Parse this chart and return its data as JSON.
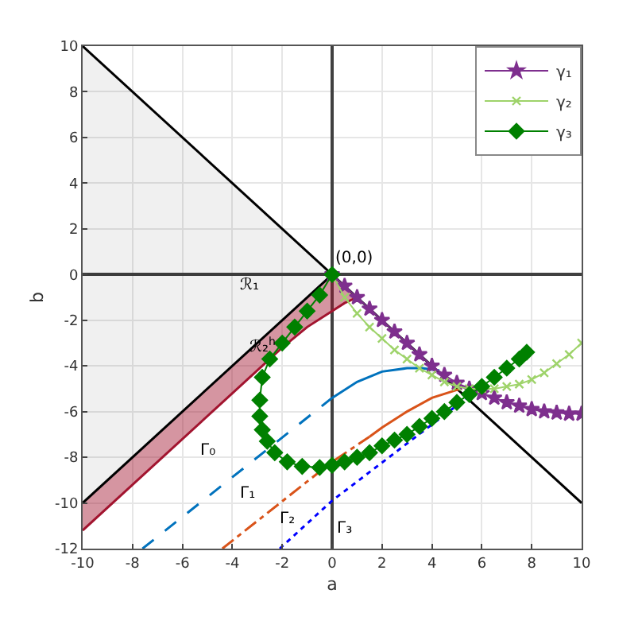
{
  "chart_data": {
    "type": "line",
    "xlabel": "a",
    "ylabel": "b",
    "xlim": [
      -10,
      10
    ],
    "ylim": [
      -12,
      10
    ],
    "xticks": [
      -10,
      -8,
      -6,
      -4,
      -2,
      0,
      2,
      4,
      6,
      8,
      10
    ],
    "yticks": [
      -12,
      -10,
      -8,
      -6,
      -4,
      -2,
      0,
      2,
      4,
      6,
      8,
      10
    ],
    "grid": true,
    "legend": "top right",
    "series": [
      {
        "type": "line",
        "color": "#000000",
        "line_style": "solid",
        "marker": "none",
        "x": [
          -10,
          10
        ],
        "values": [
          10,
          -10
        ]
      },
      {
        "type": "line",
        "color": "#000000",
        "line_style": "solid",
        "marker": "none",
        "x": [
          -10,
          0
        ],
        "values": [
          -10,
          0
        ],
        "lower": [
          -10,
          0
        ],
        "upper": [
          10,
          0
        ]
      },
      {
        "type": "line",
        "color": "#a2142f",
        "line_style": "solid",
        "marker": "none",
        "x": [
          -10,
          -2,
          -1,
          0,
          0.5,
          1
        ],
        "values": [
          -11.2,
          -3.2,
          -2.3,
          -1.6,
          -1.25,
          -1
        ],
        "lower": [
          -11.2,
          -3.2,
          -2.3,
          -1.6,
          -1.25,
          -1
        ],
        "upper": [
          -10,
          -2,
          -1,
          0,
          -0.5,
          -1
        ]
      },
      {
        "type": "line",
        "color": "#0072bd",
        "line_style": "dashed",
        "marker": "none",
        "x": [
          -7.6,
          0
        ],
        "values": [
          -12,
          -5.4
        ]
      },
      {
        "type": "line",
        "color": "#0072bd",
        "line_style": "solid",
        "marker": "none",
        "x": [
          0,
          1,
          2,
          3,
          3.6,
          4.3
        ],
        "values": [
          -5.4,
          -4.7,
          -4.25,
          -4.1,
          -4.1,
          -4.2
        ]
      },
      {
        "type": "line",
        "color": "#d95319",
        "line_style": "dashdot",
        "marker": "none",
        "x": [
          -4.4,
          0,
          1.5
        ],
        "values": [
          -12,
          -8.2,
          -7.1
        ]
      },
      {
        "type": "line",
        "color": "#d95319",
        "line_style": "solid",
        "marker": "none",
        "x": [
          1.5,
          2,
          3,
          4,
          5,
          5.2
        ],
        "values": [
          -7.1,
          -6.7,
          -6,
          -5.4,
          -5.05,
          -5
        ]
      },
      {
        "type": "line",
        "color": "#0000ff",
        "line_style": "dotted",
        "marker": "none",
        "x": [
          -2.1,
          0,
          5.4
        ],
        "values": [
          -12,
          -9.9,
          -5.4
        ]
      },
      {
        "name": "γ₁",
        "color": "#7e2f8e",
        "line_style": "solid",
        "marker": "star",
        "x": [
          0,
          0.5,
          1,
          1.5,
          2,
          2.5,
          3,
          3.5,
          4,
          4.5,
          5,
          5.5,
          6,
          6.5,
          7,
          7.5,
          8,
          8.5,
          9,
          9.5,
          10
        ],
        "values": [
          0,
          -0.5,
          -1,
          -1.5,
          -2,
          -2.5,
          -3,
          -3.5,
          -4,
          -4.4,
          -4.75,
          -5,
          -5.2,
          -5.4,
          -5.6,
          -5.75,
          -5.9,
          -6,
          -6.05,
          -6.1,
          -6.1
        ]
      },
      {
        "name": "γ₂",
        "color": "#9ed36a",
        "line_style": "solid",
        "marker": "cross",
        "x": [
          0,
          0.5,
          1,
          1.5,
          2,
          2.5,
          3,
          3.5,
          4,
          4.5,
          5,
          5.5,
          6,
          6.5,
          7,
          7.5,
          8,
          8.5,
          9,
          9.5,
          10
        ],
        "values": [
          0,
          -1,
          -1.7,
          -2.3,
          -2.8,
          -3.3,
          -3.7,
          -4.1,
          -4.4,
          -4.7,
          -4.9,
          -5,
          -5,
          -5,
          -4.9,
          -4.8,
          -4.6,
          -4.3,
          -3.9,
          -3.5,
          -3
        ]
      },
      {
        "name": "γ₃",
        "color": "#008000",
        "line_style": "solid",
        "marker": "diamond",
        "x": [
          0,
          -0.5,
          -1,
          -1.5,
          -2,
          -2.5,
          -2.8,
          -2.9,
          -2.9,
          -2.8,
          -2.6,
          -2.3,
          -1.8,
          -1.2,
          -0.5,
          0,
          0.5,
          1,
          1.5,
          2,
          2.5,
          3,
          3.5,
          4,
          4.5,
          5,
          5.5,
          6,
          6.5,
          7,
          7.5,
          7.8
        ],
        "values": [
          0,
          -0.9,
          -1.6,
          -2.3,
          -3,
          -3.7,
          -4.5,
          -5.5,
          -6.2,
          -6.8,
          -7.3,
          -7.8,
          -8.2,
          -8.4,
          -8.45,
          -8.35,
          -8.2,
          -8,
          -7.8,
          -7.5,
          -7.25,
          -7,
          -6.65,
          -6.3,
          -6,
          -5.6,
          -5.25,
          -4.9,
          -4.5,
          -4.1,
          -3.7,
          -3.4
        ]
      }
    ],
    "annotations": [
      "(0,0)",
      "ℛ₁",
      "ℛ₂$^{h}$",
      "Γ₀",
      "Γ₁",
      "Γ₂",
      "Γ₃"
    ]
  }
}
